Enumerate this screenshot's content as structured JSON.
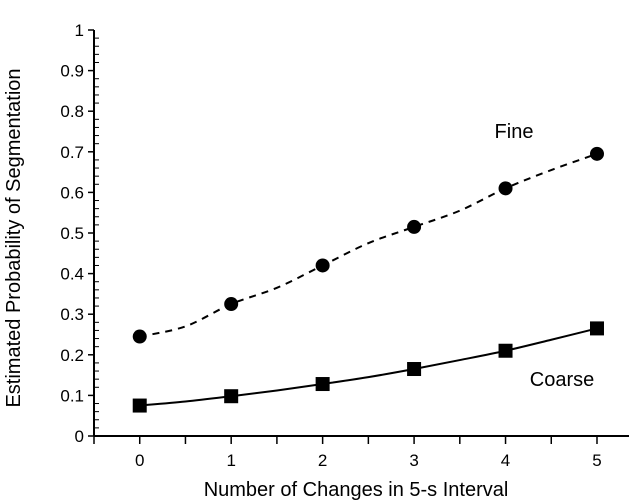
{
  "chart_data": {
    "type": "line",
    "xlabel": "Number of Changes in 5-s Interval",
    "ylabel": "Estimated Probability of Segmentation",
    "x": [
      0,
      1,
      2,
      3,
      4,
      5
    ],
    "xticks": [
      "0",
      "1",
      "2",
      "3",
      "4",
      "5"
    ],
    "yticks": [
      "0",
      "0.1",
      "0.2",
      "0.3",
      "0.4",
      "0.5",
      "0.6",
      "0.7",
      "0.8",
      "0.9",
      "1"
    ],
    "xlim": [
      -0.5,
      5.35
    ],
    "ylim": [
      0,
      1
    ],
    "grid": false,
    "series": [
      {
        "name": "Fine",
        "values": [
          0.245,
          0.325,
          0.42,
          0.515,
          0.61,
          0.695
        ],
        "marker": "circle",
        "line_style": "dashed",
        "curve": [
          [
            0,
            0.245
          ],
          [
            0.5,
            0.27
          ],
          [
            1,
            0.325
          ],
          [
            1.5,
            0.365
          ],
          [
            2,
            0.42
          ],
          [
            2.5,
            0.475
          ],
          [
            3,
            0.515
          ],
          [
            3.5,
            0.555
          ],
          [
            4,
            0.61
          ],
          [
            4.5,
            0.655
          ],
          [
            5,
            0.695
          ]
        ]
      },
      {
        "name": "Coarse",
        "values": [
          0.075,
          0.098,
          0.128,
          0.165,
          0.21,
          0.265
        ],
        "marker": "square",
        "line_style": "solid",
        "curve": [
          [
            0,
            0.075
          ],
          [
            0.5,
            0.085
          ],
          [
            1,
            0.098
          ],
          [
            1.5,
            0.112
          ],
          [
            2,
            0.128
          ],
          [
            2.5,
            0.145
          ],
          [
            3,
            0.165
          ],
          [
            3.5,
            0.187
          ],
          [
            4,
            0.21
          ],
          [
            4.5,
            0.237
          ],
          [
            5,
            0.265
          ]
        ]
      }
    ]
  }
}
